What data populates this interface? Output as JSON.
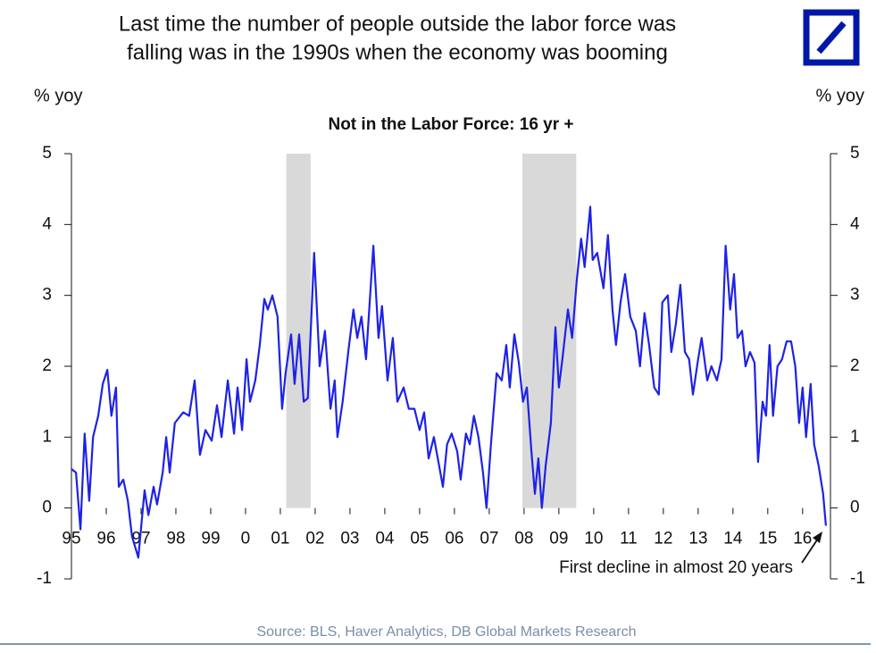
{
  "chart_data": {
    "type": "line",
    "title": [
      "Last time the number of people outside the labor force was",
      "falling was in the 1990s when the economy was booming"
    ],
    "subtitle": "Not in the Labor Force: 16 yr +",
    "y_label": "% yoy",
    "y2_label": "% yoy",
    "annotation": "First decline in almost 20 years",
    "source": "Source: BLS, Haver Analytics, DB Global Markets Research",
    "color": "#1e22e6",
    "shade_color": "#d9d9d9",
    "shaded_regions": [
      [
        2001.17,
        2001.87
      ],
      [
        2007.95,
        2009.5
      ]
    ],
    "xlim": [
      1995,
      2016.8
    ],
    "xticks": [
      {
        "value": 1995,
        "label": "95"
      },
      {
        "value": 1996,
        "label": "96"
      },
      {
        "value": 1997,
        "label": "97"
      },
      {
        "value": 1998,
        "label": "98"
      },
      {
        "value": 1999,
        "label": "99"
      },
      {
        "value": 2000,
        "label": "0"
      },
      {
        "value": 2001,
        "label": "01"
      },
      {
        "value": 2002,
        "label": "02"
      },
      {
        "value": 2003,
        "label": "03"
      },
      {
        "value": 2004,
        "label": "04"
      },
      {
        "value": 2005,
        "label": "05"
      },
      {
        "value": 2006,
        "label": "06"
      },
      {
        "value": 2007,
        "label": "07"
      },
      {
        "value": 2008,
        "label": "08"
      },
      {
        "value": 2009,
        "label": "09"
      },
      {
        "value": 2010,
        "label": "10"
      },
      {
        "value": 2011,
        "label": "11"
      },
      {
        "value": 2012,
        "label": "12"
      },
      {
        "value": 2013,
        "label": "13"
      },
      {
        "value": 2014,
        "label": "14"
      },
      {
        "value": 2015,
        "label": "15"
      },
      {
        "value": 2016,
        "label": "16"
      }
    ],
    "ylim": [
      -1,
      5
    ],
    "yticks": [
      -1,
      0,
      1,
      2,
      3,
      4,
      5
    ],
    "y2lim": [
      -1,
      5
    ],
    "y2ticks": [
      -1,
      0,
      1,
      2,
      3,
      4,
      5
    ],
    "x": [
      1995.0,
      1995.13,
      1995.26,
      1995.38,
      1995.51,
      1995.62,
      1995.77,
      1995.9,
      1996.03,
      1996.15,
      1996.28,
      1996.36,
      1996.49,
      1996.62,
      1996.74,
      1996.92,
      1997.1,
      1997.21,
      1997.36,
      1997.46,
      1997.62,
      1997.72,
      1997.82,
      1997.97,
      1998.21,
      1998.38,
      1998.54,
      1998.69,
      1998.85,
      1999.03,
      1999.18,
      1999.31,
      1999.49,
      1999.67,
      1999.77,
      1999.9,
      2000.03,
      2000.13,
      2000.28,
      2000.41,
      2000.54,
      2000.64,
      2000.77,
      2000.92,
      2001.05,
      2001.15,
      2001.31,
      2001.41,
      2001.54,
      2001.67,
      2001.79,
      2001.97,
      2002.13,
      2002.28,
      2002.44,
      2002.56,
      2002.64,
      2002.79,
      2002.95,
      2003.1,
      2003.21,
      2003.33,
      2003.46,
      2003.67,
      2003.82,
      2003.92,
      2004.08,
      2004.23,
      2004.36,
      2004.54,
      2004.69,
      2004.85,
      2005.0,
      2005.13,
      2005.26,
      2005.41,
      2005.56,
      2005.67,
      2005.79,
      2005.92,
      2006.08,
      2006.18,
      2006.33,
      2006.44,
      2006.56,
      2006.69,
      2006.82,
      2006.92,
      2007.05,
      2007.21,
      2007.36,
      2007.49,
      2007.59,
      2007.72,
      2007.85,
      2007.97,
      2008.08,
      2008.21,
      2008.31,
      2008.41,
      2008.51,
      2008.62,
      2008.77,
      2008.9,
      2009.0,
      2009.1,
      2009.26,
      2009.38,
      2009.51,
      2009.64,
      2009.74,
      2009.9,
      2009.97,
      2010.1,
      2010.28,
      2010.41,
      2010.54,
      2010.64,
      2010.77,
      2010.9,
      2011.05,
      2011.21,
      2011.33,
      2011.46,
      2011.59,
      2011.74,
      2011.87,
      2011.97,
      2012.13,
      2012.23,
      2012.36,
      2012.49,
      2012.62,
      2012.74,
      2012.85,
      2013.0,
      2013.1,
      2013.26,
      2013.38,
      2013.54,
      2013.67,
      2013.79,
      2013.92,
      2014.03,
      2014.13,
      2014.26,
      2014.36,
      2014.49,
      2014.62,
      2014.72,
      2014.85,
      2014.95,
      2015.05,
      2015.15,
      2015.28,
      2015.41,
      2015.54,
      2015.67,
      2015.79,
      2015.9,
      2016.0,
      2016.1,
      2016.23,
      2016.33,
      2016.46,
      2016.59,
      2016.67
    ],
    "values": [
      0.55,
      0.5,
      -0.3,
      1.05,
      0.1,
      1.0,
      1.3,
      1.75,
      1.95,
      1.3,
      1.7,
      0.3,
      0.4,
      0.1,
      -0.4,
      -0.7,
      0.25,
      -0.1,
      0.3,
      0.05,
      0.5,
      1.0,
      0.5,
      1.2,
      1.35,
      1.3,
      1.8,
      0.75,
      1.1,
      0.95,
      1.45,
      1.0,
      1.8,
      1.05,
      1.7,
      1.1,
      2.1,
      1.5,
      1.8,
      2.3,
      2.95,
      2.8,
      3.0,
      2.7,
      1.4,
      1.9,
      2.45,
      1.75,
      2.45,
      1.5,
      1.55,
      3.6,
      2.0,
      2.5,
      1.4,
      1.8,
      1.0,
      1.5,
      2.2,
      2.8,
      2.4,
      2.7,
      2.1,
      3.7,
      2.4,
      2.85,
      1.8,
      2.4,
      1.5,
      1.7,
      1.4,
      1.4,
      1.1,
      1.35,
      0.7,
      1.0,
      0.6,
      0.3,
      0.9,
      1.05,
      0.8,
      0.4,
      1.05,
      0.9,
      1.3,
      1.0,
      0.5,
      0.0,
      0.9,
      1.9,
      1.8,
      2.3,
      1.7,
      2.45,
      2.05,
      1.5,
      1.7,
      0.8,
      0.2,
      0.7,
      0.0,
      0.6,
      1.2,
      2.55,
      1.7,
      2.1,
      2.8,
      2.4,
      3.2,
      3.8,
      3.4,
      4.25,
      3.5,
      3.6,
      3.1,
      3.85,
      2.8,
      2.3,
      2.9,
      3.3,
      2.7,
      2.5,
      2.0,
      2.75,
      2.3,
      1.7,
      1.6,
      2.9,
      3.0,
      2.2,
      2.6,
      3.15,
      2.2,
      2.1,
      1.6,
      2.1,
      2.4,
      1.8,
      2.0,
      1.8,
      2.1,
      3.7,
      2.8,
      3.3,
      2.4,
      2.5,
      2.0,
      2.2,
      2.05,
      0.65,
      1.5,
      1.3,
      2.3,
      1.3,
      2.0,
      2.1,
      2.35,
      2.35,
      2.0,
      1.2,
      1.7,
      1.0,
      1.75,
      0.9,
      0.6,
      0.2,
      -0.25
    ]
  }
}
